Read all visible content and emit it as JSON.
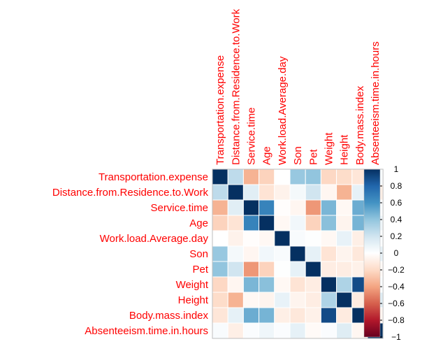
{
  "chart_data": {
    "type": "heatmap",
    "variables": [
      "Transportation.expense",
      "Distance.from.Residence.to.Work",
      "Service.time",
      "Age",
      "Work.load.Average.day",
      "Son",
      "Pet",
      "Weight",
      "Height",
      "Body.mass.index",
      "Absenteeism.time.in.hours"
    ],
    "matrix": [
      [
        1.0,
        0.26,
        -0.35,
        -0.23,
        0.0,
        0.38,
        0.4,
        -0.21,
        -0.19,
        -0.14,
        0.03
      ],
      [
        0.26,
        1.0,
        0.13,
        -0.15,
        -0.07,
        0.05,
        0.2,
        -0.05,
        -0.35,
        0.11,
        -0.09
      ],
      [
        -0.35,
        0.13,
        1.0,
        0.67,
        -0.01,
        -0.05,
        -0.44,
        0.46,
        -0.04,
        0.5,
        0.02
      ],
      [
        -0.23,
        -0.15,
        0.67,
        1.0,
        -0.04,
        0.06,
        -0.23,
        0.42,
        -0.06,
        0.47,
        0.07
      ],
      [
        0.0,
        -0.07,
        -0.01,
        -0.04,
        1.0,
        0.03,
        0.01,
        -0.04,
        0.1,
        -0.09,
        0.02
      ],
      [
        0.38,
        0.05,
        -0.05,
        0.06,
        0.03,
        1.0,
        0.11,
        -0.15,
        -0.06,
        -0.13,
        0.11
      ],
      [
        0.4,
        0.2,
        -0.44,
        -0.23,
        0.01,
        0.11,
        1.0,
        -0.1,
        -0.1,
        -0.08,
        -0.03
      ],
      [
        -0.21,
        -0.05,
        0.46,
        0.42,
        -0.04,
        -0.15,
        -0.1,
        1.0,
        0.31,
        0.9,
        0.02
      ],
      [
        -0.19,
        -0.35,
        -0.04,
        -0.06,
        0.1,
        -0.06,
        -0.1,
        0.31,
        1.0,
        -0.11,
        0.14
      ],
      [
        -0.14,
        0.11,
        0.5,
        0.47,
        -0.09,
        -0.13,
        -0.08,
        0.9,
        -0.11,
        1.0,
        -0.05
      ],
      [
        0.03,
        -0.09,
        0.02,
        0.07,
        0.02,
        0.11,
        -0.03,
        0.02,
        0.14,
        -0.05,
        1.0
      ]
    ],
    "colorbar": {
      "range": [
        -1,
        1
      ],
      "ticks": [
        1,
        0.8,
        0.6,
        0.4,
        0.2,
        0,
        -0.2,
        -0.4,
        -0.6,
        -0.8,
        -1
      ],
      "tick_labels": [
        "1",
        "0.8",
        "0.6",
        "0.4",
        "0.2",
        "0",
        "−0.2",
        "−0.4",
        "−0.6",
        "−0.8",
        "−1"
      ]
    },
    "colors": {
      "label": "#ff0000",
      "grid": "#ffffff",
      "border": "#bebebe",
      "stops": [
        "#67001f",
        "#b2182b",
        "#d6604d",
        "#f4a582",
        "#fddbc7",
        "#ffffff",
        "#d1e5f0",
        "#92c5de",
        "#4393c3",
        "#2166ac",
        "#053061"
      ]
    }
  }
}
